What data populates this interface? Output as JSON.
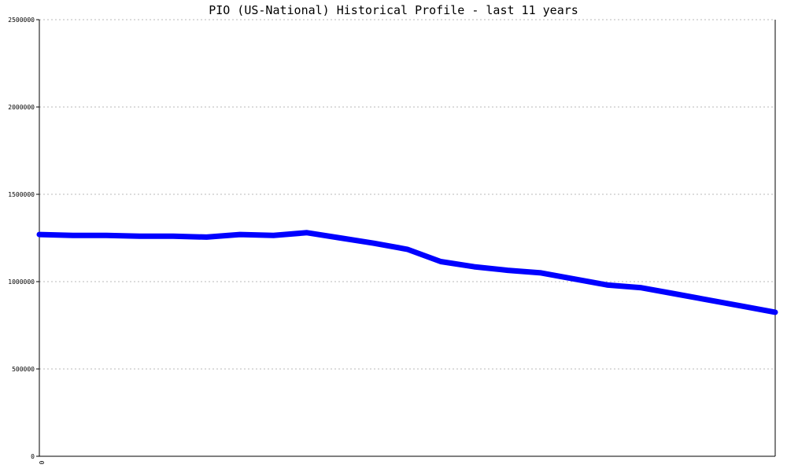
{
  "chart_data": {
    "type": "line",
    "title": "PIO (US-National) Historical Profile - last 11 years",
    "xlabel": "",
    "ylabel": "",
    "x_tick_labels": [
      "0"
    ],
    "y_ticks": [
      0,
      500000,
      1000000,
      1500000,
      2000000,
      2500000
    ],
    "y_tick_labels": [
      "0",
      "500000",
      "1000000",
      "1500000",
      "2000000",
      "2500000"
    ],
    "ylim": [
      0,
      2500000
    ],
    "grid": true,
    "series": [
      {
        "color": "#0000ff",
        "values": [
          1270000,
          1265000,
          1265000,
          1260000,
          1260000,
          1255000,
          1270000,
          1265000,
          1280000,
          1250000,
          1220000,
          1185000,
          1115000,
          1085000,
          1065000,
          1050000,
          1015000,
          980000,
          965000,
          930000,
          895000,
          860000,
          825000
        ]
      }
    ]
  }
}
